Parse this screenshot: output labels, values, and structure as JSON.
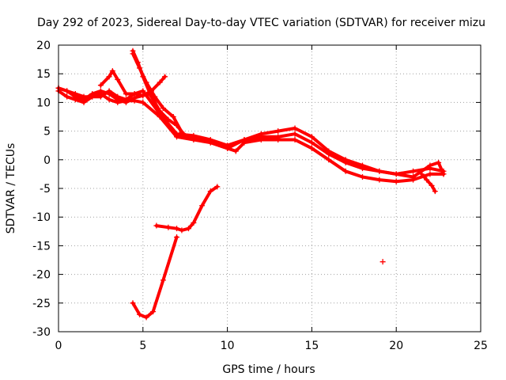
{
  "chart_data": {
    "type": "scatter",
    "title": "Day 292 of 2023, Sidereal Day-to-day VTEC variation (SDTVAR) for receiver mizu",
    "xlabel": "GPS time / hours",
    "ylabel": "SDTVAR / TECUs",
    "xlim": [
      0,
      25
    ],
    "ylim": [
      -30,
      20
    ],
    "xticks": [
      0,
      5,
      10,
      15,
      20,
      25
    ],
    "yticks": [
      -30,
      -25,
      -20,
      -15,
      -10,
      -5,
      0,
      5,
      10,
      15,
      20
    ],
    "grid": true,
    "marker": "+",
    "color": "#ff0000",
    "series": [
      {
        "name": "track-a",
        "x": [
          0,
          0.5,
          1,
          1.5,
          2,
          2.5,
          3,
          3.5,
          4,
          4.5,
          5,
          5.5,
          6,
          7,
          8,
          9,
          10,
          11,
          12,
          13,
          14,
          15,
          16,
          17,
          18,
          19,
          20,
          21,
          22,
          22.8
        ],
        "y": [
          12.5,
          12,
          11,
          10.5,
          11.5,
          12,
          11.5,
          10.5,
          10,
          10.8,
          11.2,
          11.5,
          8,
          4.5,
          4,
          3,
          2,
          3.5,
          4,
          4,
          4.5,
          3,
          1,
          -0.5,
          -1.5,
          -2,
          -2.5,
          -2,
          -1.5,
          -2
        ]
      },
      {
        "name": "track-b",
        "x": [
          0,
          0.5,
          1,
          1.5,
          2,
          2.5,
          3,
          3.5,
          4,
          4.5,
          5,
          6,
          7,
          8,
          9,
          10,
          10.5,
          11,
          12,
          13,
          14,
          15,
          16,
          17,
          18,
          19,
          20,
          21,
          22,
          22.8
        ],
        "y": [
          12,
          11,
          10.5,
          10,
          11,
          11.5,
          10.5,
          10,
          10.3,
          10.3,
          10,
          7.5,
          4,
          3.5,
          3,
          2,
          1.5,
          3,
          3.5,
          3.5,
          3.5,
          2,
          0,
          -2,
          -3,
          -3.5,
          -3.8,
          -3.5,
          -2.5,
          -2.5
        ]
      },
      {
        "name": "track-c",
        "x": [
          0,
          0.5,
          1,
          1.5,
          2,
          2.5,
          3,
          3.5,
          4,
          4.5,
          5,
          6,
          7,
          8,
          9,
          10,
          11,
          12,
          13,
          14,
          15,
          16,
          17,
          18,
          19,
          20,
          21,
          22,
          22.5,
          22.8
        ],
        "y": [
          12.5,
          12,
          11.5,
          11,
          11,
          11,
          12,
          11,
          10.5,
          11.5,
          12,
          8,
          4.5,
          4.2,
          3.5,
          2.5,
          3.5,
          4.5,
          5,
          5.5,
          4,
          1.5,
          0,
          -1,
          -2,
          -2.5,
          -3,
          -1,
          -0.5,
          -2.5
        ]
      },
      {
        "name": "track-d",
        "x": [
          2.5,
          3,
          3.2,
          3.5,
          4,
          4.5,
          5,
          5.5,
          6,
          6.3
        ],
        "y": [
          13,
          14.5,
          15.5,
          14,
          11.5,
          11.5,
          11.2,
          12,
          13.5,
          14.5
        ]
      },
      {
        "name": "track-e",
        "x": [
          4.4,
          4.7,
          5,
          5.5,
          6,
          6.5,
          7,
          7.5
        ],
        "y": [
          19,
          17,
          14.5,
          11,
          8.5,
          7,
          6,
          4.2
        ]
      },
      {
        "name": "track-f",
        "x": [
          4.4,
          4.8,
          5.2,
          5.7,
          6.2,
          6.8,
          7.3
        ],
        "y": [
          18.5,
          16,
          13.5,
          11,
          9,
          7.5,
          4.8
        ]
      },
      {
        "name": "track-g",
        "x": [
          21.5,
          21.8,
          22.1,
          22.3
        ],
        "y": [
          -2.5,
          -3.5,
          -4.5,
          -5.5
        ]
      },
      {
        "name": "track-h",
        "x": [
          4.4,
          4.8,
          5.2,
          5.6,
          6.2,
          7
        ],
        "y": [
          -25,
          -27,
          -27.5,
          -26.5,
          -21,
          -13.5
        ]
      },
      {
        "name": "track-i",
        "x": [
          5.8,
          6.5,
          7,
          7.3,
          7.7,
          8,
          8.5,
          9,
          9.4
        ],
        "y": [
          -11.5,
          -11.8,
          -12,
          -12.3,
          -12,
          -11,
          -8,
          -5.5,
          -4.7
        ]
      },
      {
        "name": "outlier",
        "x": [
          19.2
        ],
        "y": [
          -17.8
        ]
      }
    ]
  }
}
